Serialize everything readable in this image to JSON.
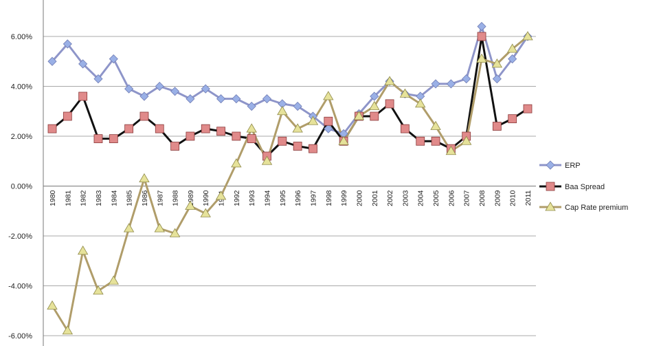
{
  "chart_data": {
    "type": "line",
    "title": "",
    "xlabel": "",
    "ylabel": "",
    "ylim": [
      -0.06,
      0.07
    ],
    "y_ticks": [
      "6.00%",
      "4.00%",
      "2.00%",
      "0.00%",
      "-2.00%",
      "-4.00%",
      "-6.00%"
    ],
    "y_tick_values": [
      0.06,
      0.04,
      0.02,
      0.0,
      -0.02,
      -0.04,
      -0.06
    ],
    "grid": true,
    "legend_position": "right",
    "categories": [
      "1980",
      "1981",
      "1982",
      "1983",
      "1984",
      "1985",
      "1986",
      "1987",
      "1988",
      "1989",
      "1990",
      "1991",
      "1992",
      "1993",
      "1994",
      "1995",
      "1996",
      "1997",
      "1998",
      "1999",
      "2000",
      "2001",
      "2002",
      "2003",
      "2004",
      "2005",
      "2006",
      "2007",
      "2008",
      "2009",
      "2010",
      "2011"
    ],
    "series": [
      {
        "name": "ERP",
        "color": "#8e95c9",
        "marker_color": "#9ab0e6",
        "marker": "diamond",
        "values": [
          0.05,
          0.057,
          0.049,
          0.043,
          0.051,
          0.039,
          0.036,
          0.04,
          0.038,
          0.035,
          0.039,
          0.035,
          0.035,
          0.032,
          0.035,
          0.033,
          0.032,
          0.028,
          0.023,
          0.021,
          0.029,
          0.036,
          0.042,
          0.037,
          0.036,
          0.041,
          0.041,
          0.043,
          0.064,
          0.043,
          0.051,
          0.06
        ]
      },
      {
        "name": "Baa Spread",
        "color": "#111111",
        "marker_color": "#e08a8a",
        "marker": "square",
        "values": [
          0.023,
          0.028,
          0.036,
          0.019,
          0.019,
          0.023,
          0.028,
          0.023,
          0.016,
          0.02,
          0.023,
          0.022,
          0.02,
          0.019,
          0.012,
          0.018,
          0.016,
          0.015,
          0.026,
          0.018,
          0.028,
          0.028,
          0.033,
          0.023,
          0.018,
          0.018,
          0.015,
          0.02,
          0.06,
          0.024,
          0.027,
          0.031
        ]
      },
      {
        "name": "Cap Rate premium",
        "color": "#b09d6a",
        "marker_color": "#e6e29a",
        "marker": "triangle",
        "values": [
          -0.048,
          -0.058,
          -0.026,
          -0.042,
          -0.038,
          -0.017,
          0.003,
          -0.017,
          -0.019,
          -0.008,
          -0.011,
          -0.004,
          0.009,
          0.023,
          0.01,
          0.03,
          0.023,
          0.026,
          0.036,
          0.018,
          0.028,
          0.032,
          0.042,
          0.037,
          0.033,
          0.024,
          0.014,
          0.018,
          0.051,
          0.049,
          0.055,
          0.06
        ]
      }
    ]
  }
}
